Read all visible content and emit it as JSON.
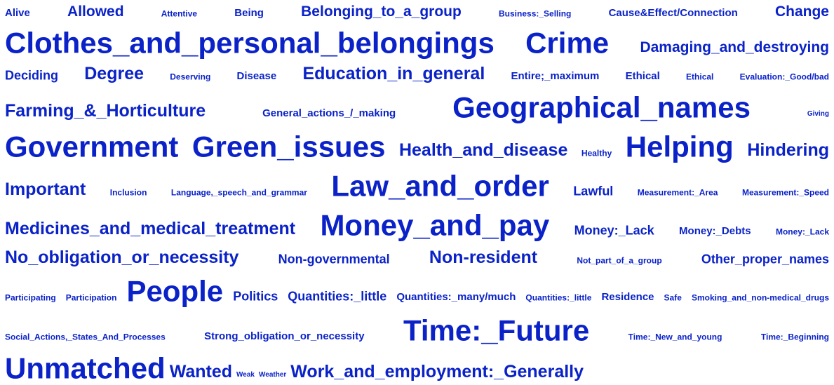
{
  "cloud": {
    "color": "#0a22c8",
    "lines": [
      {
        "words": [
          {
            "text": "Alive",
            "level": 2
          },
          {
            "text": "Allowed",
            "level": 4
          },
          {
            "text": "Attentive",
            "level": 1
          },
          {
            "text": "Being",
            "level": 2
          },
          {
            "text": "Belonging_to_a_group",
            "level": 4
          },
          {
            "text": "Business:_Selling",
            "level": 1
          },
          {
            "text": "Cause&Effect/Connection",
            "level": 2
          },
          {
            "text": "Change",
            "level": 4
          }
        ]
      },
      {
        "words": [
          {
            "text": "Clothes_and_personal_belongings",
            "level": 8
          },
          {
            "text": "Crime",
            "level": 8
          },
          {
            "text": "Damaging_and_destroying",
            "level": 4
          }
        ]
      },
      {
        "words": [
          {
            "text": "Deciding",
            "level": 3
          },
          {
            "text": "Degree",
            "level": 5
          },
          {
            "text": "Deserving",
            "level": 1
          },
          {
            "text": "Disease",
            "level": 2
          },
          {
            "text": "Education_in_general",
            "level": 5
          },
          {
            "text": "Entire;_maximum",
            "level": 2
          },
          {
            "text": "Ethical",
            "level": 2
          },
          {
            "text": "Ethical",
            "level": 1
          },
          {
            "text": "Evaluation:_Good/bad",
            "level": 1
          }
        ]
      },
      {
        "words": [
          {
            "text": "Farming_&_Horticulture",
            "level": 5
          },
          {
            "text": "General_actions_/_making",
            "level": 2
          },
          {
            "text": "Geographical_names",
            "level": 8
          },
          {
            "text": "Giving",
            "level": 0
          }
        ]
      },
      {
        "words": [
          {
            "text": "Government",
            "level": 8
          },
          {
            "text": "Green_issues",
            "level": 8
          },
          {
            "text": "Health_and_disease",
            "level": 5
          },
          {
            "text": "Healthy",
            "level": 1
          },
          {
            "text": "Helping",
            "level": 8
          },
          {
            "text": "Hindering",
            "level": 5
          }
        ]
      },
      {
        "words": [
          {
            "text": "Important",
            "level": 5
          },
          {
            "text": "Inclusion",
            "level": 1
          },
          {
            "text": "Language,_speech_and_grammar",
            "level": 1
          },
          {
            "text": "Law_and_order",
            "level": 8
          },
          {
            "text": "Lawful",
            "level": 3
          },
          {
            "text": "Measurement:_Area",
            "level": 1
          },
          {
            "text": "Measurement:_Speed",
            "level": 1
          }
        ]
      },
      {
        "words": [
          {
            "text": "Medicines_and_medical_treatment",
            "level": 5
          },
          {
            "text": "Money_and_pay",
            "level": 8
          },
          {
            "text": "Money:_Lack",
            "level": 3
          },
          {
            "text": "Money:_Debts",
            "level": 2
          },
          {
            "text": "Money:_Lack",
            "level": 1
          }
        ]
      },
      {
        "words": [
          {
            "text": "No_obligation_or_necessity",
            "level": 5
          },
          {
            "text": "Non-governmental",
            "level": 3
          },
          {
            "text": "Non-resident",
            "level": 5
          },
          {
            "text": "Not_part_of_a_group",
            "level": 1
          },
          {
            "text": "Other_proper_names",
            "level": 3
          }
        ]
      },
      {
        "words": [
          {
            "text": "Participating",
            "level": 1
          },
          {
            "text": "Participation",
            "level": 1
          },
          {
            "text": "People",
            "level": 8
          },
          {
            "text": "Politics",
            "level": 3
          },
          {
            "text": "Quantities:_little",
            "level": 3
          },
          {
            "text": "Quantities:_many/much",
            "level": 2
          },
          {
            "text": "Quantities:_little",
            "level": 1
          },
          {
            "text": "Residence",
            "level": 2
          },
          {
            "text": "Safe",
            "level": 1
          },
          {
            "text": "Smoking_and_non-medical_drugs",
            "level": 1
          }
        ]
      },
      {
        "words": [
          {
            "text": "Social_Actions,_States_And_Processes",
            "level": 1
          },
          {
            "text": "Strong_obligation_or_necessity",
            "level": 2
          },
          {
            "text": "Time:_Future",
            "level": 8
          },
          {
            "text": "Time:_New_and_young",
            "level": 1
          },
          {
            "text": "Time:_Beginning",
            "level": 1
          }
        ]
      },
      {
        "words": [
          {
            "text": "Unmatched",
            "level": 8
          },
          {
            "text": "Wanted",
            "level": 5
          },
          {
            "text": "Weak",
            "level": 0
          },
          {
            "text": "Weather",
            "level": 0
          },
          {
            "text": "Work_and_employment:_Generally",
            "level": 5
          }
        ]
      }
    ]
  }
}
